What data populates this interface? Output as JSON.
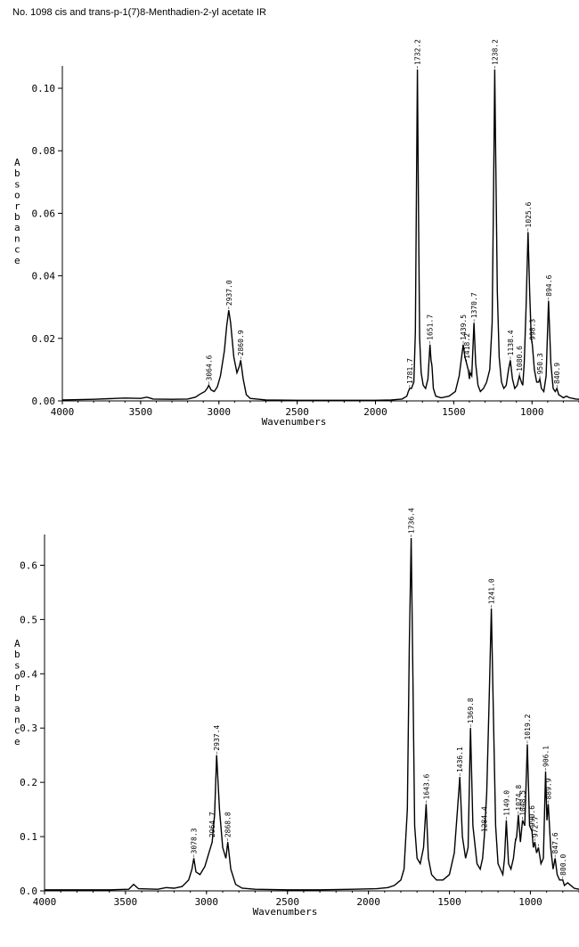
{
  "page": {
    "title": "No. 1098 cis and trans-p-1(7)8-Menthadien-2-yl acetate IR"
  },
  "chart_data": [
    {
      "type": "line",
      "xlabel": "Wavenumbers",
      "ylabel": "Absorbance",
      "xlim": [
        4000,
        700
      ],
      "ylim": [
        0,
        0.106
      ],
      "x_ticks": [
        4000,
        3500,
        3000,
        2500,
        2000,
        1500,
        1000
      ],
      "x_tick_labels": [
        "4000",
        "3500",
        "3000",
        "2500",
        "2000",
        "1500",
        "1000"
      ],
      "y_ticks": [
        0,
        0.02,
        0.04,
        0.06,
        0.08,
        0.1
      ],
      "y_tick_labels": [
        "0.00",
        "0.02",
        "0.04",
        "0.06",
        "0.08",
        "0.10"
      ],
      "peaks": [
        {
          "x": 3064.6,
          "label": "3064.6",
          "value": 0.005
        },
        {
          "x": 2937.0,
          "label": "2937.0",
          "value": 0.029
        },
        {
          "x": 2860.9,
          "label": "2860.9",
          "value": 0.013
        },
        {
          "x": 1781.7,
          "label": "1781.7",
          "value": 0.004
        },
        {
          "x": 1732,
          "label": "1732.2",
          "value": 0.106
        },
        {
          "x": 1651.7,
          "label": "1651.7",
          "value": 0.018
        },
        {
          "x": 1639,
          "label": "",
          "value": 0.011
        },
        {
          "x": 1439.5,
          "label": "1439.5",
          "value": 0.018
        },
        {
          "x": 1418,
          "label": "1418.2",
          "value": 0.012
        },
        {
          "x": 1395,
          "label": "",
          "value": 0.009
        },
        {
          "x": 1370.7,
          "label": "1370.7",
          "value": 0.025
        },
        {
          "x": 1238,
          "label": "1238.2",
          "value": 0.106
        },
        {
          "x": 1138.4,
          "label": "1138.4",
          "value": 0.013
        },
        {
          "x": 1080.6,
          "label": "1080.6",
          "value": 0.008
        },
        {
          "x": 1059,
          "label": "",
          "value": 0.005
        },
        {
          "x": 1025.6,
          "label": "1025.6",
          "value": 0.054
        },
        {
          "x": 998,
          "label": "998.3",
          "value": 0.018
        },
        {
          "x": 950.3,
          "label": "950.3",
          "value": 0.007
        },
        {
          "x": 894.6,
          "label": "894.6",
          "value": 0.032
        },
        {
          "x": 840.9,
          "label": "840.9",
          "value": 0.004
        }
      ],
      "series": [
        {
          "x": [
            4000,
            3800,
            3700,
            3600,
            3500,
            3460,
            3440,
            3420,
            3300,
            3200,
            3150,
            3120,
            3090,
            3075,
            3064.6,
            3050,
            3030,
            3010,
            2990,
            2965,
            2950,
            2937,
            2925,
            2905,
            2885,
            2870,
            2860.9,
            2845,
            2825,
            2800,
            2700,
            2500,
            2300,
            2100,
            2000,
            1900,
            1830,
            1800,
            1790,
            1781.7,
            1770,
            1755,
            1745,
            1738,
            1732,
            1726,
            1718,
            1708,
            1695,
            1680,
            1665,
            1651.7,
            1645,
            1639,
            1630,
            1615,
            1580,
            1530,
            1490,
            1465,
            1450,
            1439.5,
            1428,
            1418,
            1408,
            1400,
            1395,
            1385,
            1370.7,
            1360,
            1345,
            1330,
            1310,
            1290,
            1270,
            1255,
            1245,
            1238,
            1232,
            1222,
            1210,
            1195,
            1180,
            1165,
            1150,
            1138.4,
            1125,
            1110,
            1095,
            1080.6,
            1068,
            1059,
            1050,
            1038,
            1025.6,
            1015,
            1005,
            998,
            985,
            970,
            958,
            950.3,
            940,
            925,
            910,
            894.6,
            880,
            865,
            852,
            840.9,
            830,
            815,
            800,
            780,
            760,
            740,
            720,
            700
          ],
          "y": [
            0.0003,
            0.0005,
            0.0007,
            0.0009,
            0.0008,
            0.0012,
            0.0009,
            0.0006,
            0.0005,
            0.0006,
            0.0012,
            0.0022,
            0.003,
            0.004,
            0.005,
            0.0035,
            0.003,
            0.0045,
            0.008,
            0.016,
            0.024,
            0.029,
            0.025,
            0.014,
            0.009,
            0.011,
            0.013,
            0.007,
            0.002,
            0.0008,
            0.0003,
            0.0002,
            0.0002,
            0.0002,
            0.0002,
            0.0003,
            0.0006,
            0.0015,
            0.003,
            0.004,
            0.004,
            0.006,
            0.022,
            0.07,
            0.106,
            0.065,
            0.02,
            0.009,
            0.005,
            0.004,
            0.007,
            0.018,
            0.013,
            0.011,
            0.004,
            0.0015,
            0.001,
            0.0015,
            0.003,
            0.008,
            0.014,
            0.018,
            0.014,
            0.012,
            0.01,
            0.007,
            0.009,
            0.008,
            0.025,
            0.012,
            0.005,
            0.003,
            0.004,
            0.006,
            0.01,
            0.025,
            0.07,
            0.106,
            0.078,
            0.035,
            0.014,
            0.006,
            0.004,
            0.005,
            0.01,
            0.013,
            0.007,
            0.004,
            0.005,
            0.008,
            0.006,
            0.005,
            0.012,
            0.03,
            0.054,
            0.035,
            0.02,
            0.018,
            0.01,
            0.006,
            0.006,
            0.007,
            0.004,
            0.003,
            0.008,
            0.032,
            0.012,
            0.004,
            0.003,
            0.004,
            0.002,
            0.0015,
            0.001,
            0.0015,
            0.001,
            0.0008,
            0.0006,
            0.0005
          ]
        }
      ]
    },
    {
      "type": "line",
      "xlabel": "Wavenumbers",
      "ylabel": "Absorbance",
      "xlim": [
        4000,
        700
      ],
      "ylim": [
        0,
        0.65
      ],
      "x_ticks": [
        4000,
        3500,
        3000,
        2500,
        2000,
        1500,
        1000
      ],
      "x_tick_labels": [
        "4000",
        "3500",
        "3000",
        "2500",
        "2000",
        "1500",
        "1000"
      ],
      "y_ticks": [
        0,
        0.1,
        0.2,
        0.3,
        0.4,
        0.5,
        0.6
      ],
      "y_tick_labels": [
        "0.0",
        "0.1",
        "0.2",
        "0.3",
        "0.4",
        "0.5",
        "0.6"
      ],
      "peaks": [
        {
          "x": 3078.3,
          "label": "3078.3",
          "value": 0.06
        },
        {
          "x": 2964.7,
          "label": "2964.7",
          "value": 0.09
        },
        {
          "x": 2937.4,
          "label": "2937.4",
          "value": 0.25
        },
        {
          "x": 2868.8,
          "label": "2868.8",
          "value": 0.09
        },
        {
          "x": 1736.4,
          "label": "1736.4",
          "value": 0.65
        },
        {
          "x": 1643.6,
          "label": "1643.6",
          "value": 0.16
        },
        {
          "x": 1436.1,
          "label": "1436.1",
          "value": 0.21
        },
        {
          "x": 1369.8,
          "label": "1369.8",
          "value": 0.3
        },
        {
          "x": 1284.4,
          "label": "1284.4",
          "value": 0.1
        },
        {
          "x": 1241.0,
          "label": "1241.0",
          "value": 0.52
        },
        {
          "x": 1149.0,
          "label": "1149.0",
          "value": 0.13
        },
        {
          "x": 1094,
          "label": "",
          "value": 0.09
        },
        {
          "x": 1074.8,
          "label": "1074.8",
          "value": 0.14
        },
        {
          "x": 1048.5,
          "label": "1048.5",
          "value": 0.13
        },
        {
          "x": 1019.2,
          "label": "1019.2",
          "value": 0.27
        },
        {
          "x": 990.6,
          "label": "990.6",
          "value": 0.11
        },
        {
          "x": 972.7,
          "label": "972.7",
          "value": 0.09
        },
        {
          "x": 950,
          "label": "",
          "value": 0.08
        },
        {
          "x": 906.1,
          "label": "906.1",
          "value": 0.22
        },
        {
          "x": 889.9,
          "label": "889.9",
          "value": 0.16
        },
        {
          "x": 847.6,
          "label": "847.6",
          "value": 0.06
        },
        {
          "x": 800.0,
          "label": "800.0",
          "value": 0.02
        }
      ],
      "series": [
        {
          "x": [
            4000,
            3800,
            3600,
            3480,
            3450,
            3420,
            3300,
            3250,
            3200,
            3150,
            3110,
            3090,
            3078.3,
            3065,
            3040,
            3010,
            2985,
            2964.7,
            2950,
            2937.4,
            2920,
            2900,
            2880,
            2868.8,
            2850,
            2820,
            2780,
            2700,
            2500,
            2300,
            2100,
            1950,
            1880,
            1840,
            1800,
            1780,
            1760,
            1748,
            1736.4,
            1726,
            1715,
            1700,
            1680,
            1660,
            1643.6,
            1630,
            1610,
            1580,
            1540,
            1500,
            1470,
            1450,
            1436.1,
            1420,
            1400,
            1385,
            1369.8,
            1355,
            1330,
            1310,
            1295,
            1284.4,
            1270,
            1255,
            1241,
            1230,
            1215,
            1200,
            1185,
            1170,
            1160,
            1149,
            1135,
            1120,
            1105,
            1094,
            1085,
            1074.8,
            1062,
            1048.5,
            1035,
            1019.2,
            1005,
            990.6,
            982,
            972.7,
            962,
            950,
            935,
            920,
            906.1,
            898,
            889.9,
            875,
            860,
            847.6,
            835,
            820,
            800,
            790,
            770,
            750,
            730,
            700
          ],
          "y": [
            0.002,
            0.002,
            0.002,
            0.003,
            0.012,
            0.004,
            0.003,
            0.006,
            0.005,
            0.008,
            0.02,
            0.04,
            0.06,
            0.035,
            0.03,
            0.045,
            0.07,
            0.09,
            0.14,
            0.25,
            0.15,
            0.08,
            0.06,
            0.09,
            0.04,
            0.012,
            0.005,
            0.003,
            0.002,
            0.002,
            0.003,
            0.004,
            0.006,
            0.01,
            0.02,
            0.04,
            0.15,
            0.45,
            0.65,
            0.4,
            0.12,
            0.06,
            0.05,
            0.08,
            0.16,
            0.06,
            0.03,
            0.02,
            0.02,
            0.03,
            0.07,
            0.15,
            0.21,
            0.1,
            0.06,
            0.08,
            0.3,
            0.12,
            0.05,
            0.04,
            0.06,
            0.1,
            0.18,
            0.35,
            0.52,
            0.35,
            0.12,
            0.05,
            0.04,
            0.03,
            0.06,
            0.13,
            0.05,
            0.04,
            0.06,
            0.09,
            0.1,
            0.14,
            0.09,
            0.13,
            0.12,
            0.27,
            0.12,
            0.11,
            0.08,
            0.09,
            0.07,
            0.08,
            0.05,
            0.06,
            0.22,
            0.13,
            0.16,
            0.08,
            0.04,
            0.06,
            0.03,
            0.02,
            0.02,
            0.01,
            0.015,
            0.01,
            0.005,
            0.003
          ]
        }
      ]
    }
  ]
}
